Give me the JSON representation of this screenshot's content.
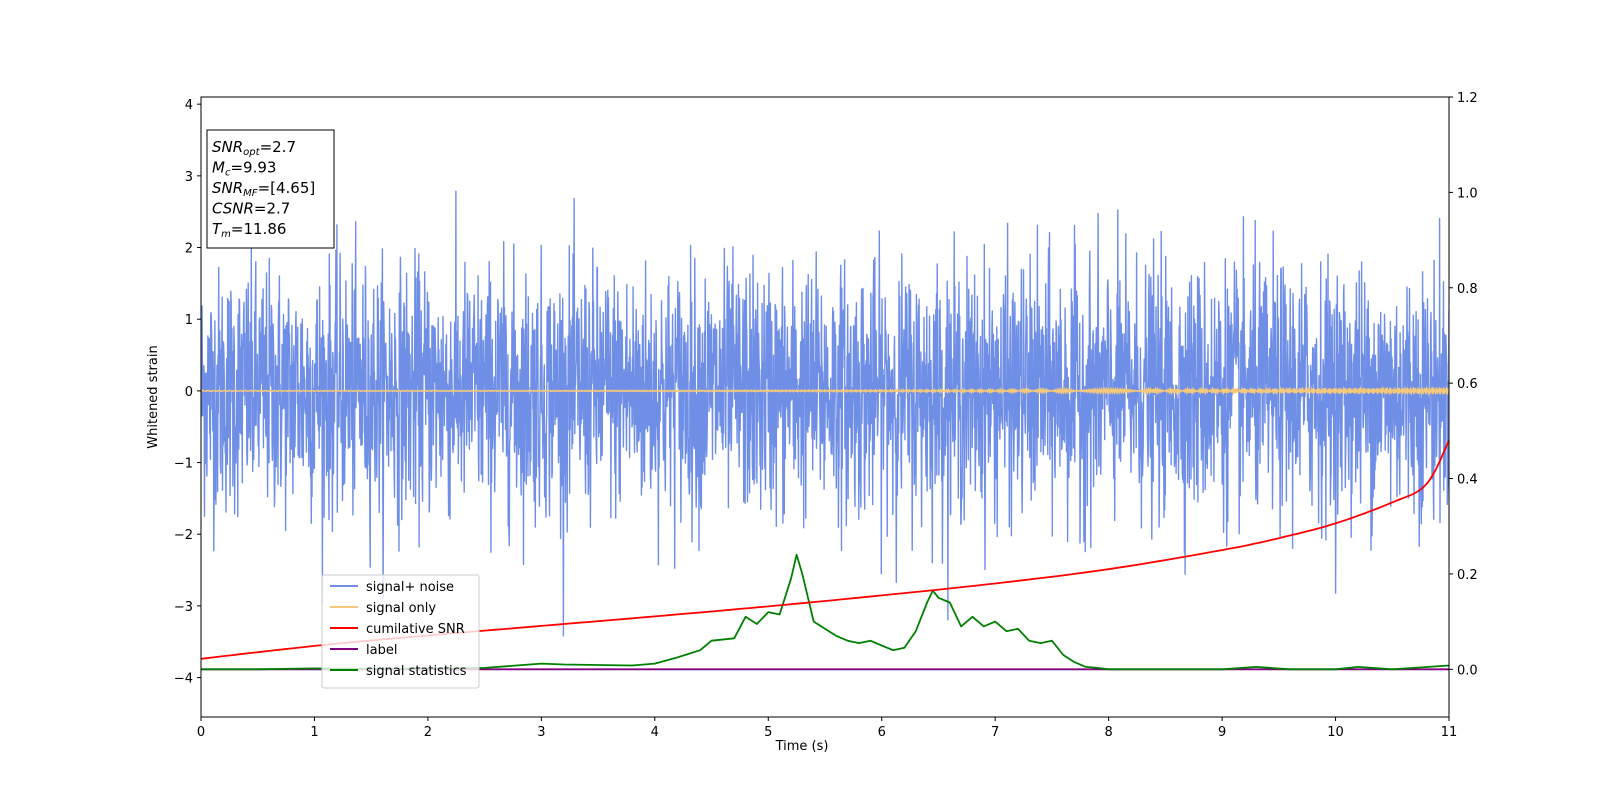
{
  "chart_data": {
    "type": "line",
    "xlabel": "Time (s)",
    "ylabel": "Whitened strain",
    "xlim": [
      0,
      11
    ],
    "ylim_left": [
      -4.55,
      4.1
    ],
    "ylim_right": [
      -0.1,
      1.2
    ],
    "x_ticks": [
      "0",
      "1",
      "2",
      "3",
      "4",
      "5",
      "6",
      "7",
      "8",
      "9",
      "10",
      "11"
    ],
    "y_ticks_left": [
      "−4",
      "−3",
      "−2",
      "−1",
      "0",
      "1",
      "2",
      "3",
      "4"
    ],
    "y_ticks_right": [
      "0.0",
      "0.2",
      "0.4",
      "0.6",
      "0.8",
      "1.0",
      "1.2"
    ],
    "grid": false,
    "legend_position": "lower-left",
    "annotation_box": {
      "lines": [
        {
          "base": "SNR",
          "sub": "opt",
          "rest": "=2.7"
        },
        {
          "base": "M",
          "sub": "c",
          "rest": "=9.93"
        },
        {
          "base": "SNR",
          "sub": "MF",
          "rest": "=[4.65]"
        },
        {
          "base": "CSNR",
          "sub": "",
          "rest": "=2.7"
        },
        {
          "base": "T",
          "sub": "m",
          "rest": "=11.86"
        }
      ]
    },
    "series": [
      {
        "name": "signal+ noise",
        "axis": "left",
        "color": "#6f8ee6",
        "description_style": "noise",
        "noise_std": 0.85,
        "noise_max_abs": 3.7
      },
      {
        "name": "signal only",
        "axis": "left",
        "color": "#f5c97a",
        "amplitude_start": 0.005,
        "amplitude_end": 0.05
      },
      {
        "name": "cumilative SNR",
        "axis": "right",
        "color": "#ff0000",
        "x": [
          0,
          1,
          2,
          3,
          4,
          5,
          6,
          7,
          8,
          9,
          9.5,
          10,
          10.5,
          10.8,
          11
        ],
        "y": [
          0.022,
          0.049,
          0.071,
          0.091,
          0.111,
          0.132,
          0.155,
          0.18,
          0.21,
          0.25,
          0.275,
          0.306,
          0.35,
          0.388,
          0.48
        ]
      },
      {
        "name": "label",
        "axis": "right",
        "color": "#800080",
        "x": [
          0,
          11
        ],
        "y": [
          0,
          0
        ]
      },
      {
        "name": "signal statistics",
        "axis": "right",
        "color": "#008000",
        "x": [
          0,
          0.5,
          1,
          1.5,
          2,
          2.5,
          3,
          3.2,
          3.5,
          3.8,
          4,
          4.2,
          4.4,
          4.5,
          4.7,
          4.8,
          4.9,
          5,
          5.1,
          5.2,
          5.25,
          5.3,
          5.4,
          5.5,
          5.6,
          5.7,
          5.8,
          5.9,
          6,
          6.1,
          6.2,
          6.3,
          6.4,
          6.45,
          6.5,
          6.6,
          6.7,
          6.8,
          6.9,
          7,
          7.1,
          7.2,
          7.3,
          7.4,
          7.5,
          7.6,
          7.7,
          7.8,
          7.9,
          8,
          8.5,
          9,
          9.3,
          9.6,
          10,
          10.2,
          10.5,
          11
        ],
        "y": [
          0.0,
          0.0,
          0.002,
          0.001,
          0.002,
          0.003,
          0.012,
          0.01,
          0.009,
          0.008,
          0.012,
          0.025,
          0.04,
          0.06,
          0.065,
          0.11,
          0.095,
          0.12,
          0.115,
          0.19,
          0.24,
          0.2,
          0.1,
          0.085,
          0.07,
          0.06,
          0.055,
          0.06,
          0.05,
          0.04,
          0.045,
          0.08,
          0.14,
          0.165,
          0.15,
          0.14,
          0.09,
          0.11,
          0.09,
          0.1,
          0.08,
          0.085,
          0.06,
          0.055,
          0.06,
          0.03,
          0.015,
          0.005,
          0.003,
          0.0,
          0.0,
          0.0,
          0.005,
          0.0,
          0.0,
          0.005,
          0.0,
          0.008
        ]
      }
    ]
  }
}
